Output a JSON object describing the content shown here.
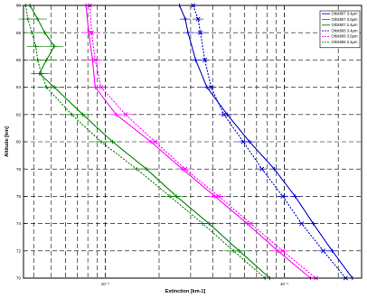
{
  "chart_data": {
    "type": "line",
    "title": "",
    "xlabel": "Extinction [km-1]",
    "ylabel": "Altitude [km]",
    "xscale": "log",
    "xlim": [
      3.5e-06,
      0.00027
    ],
    "ylim": [
      70,
      90
    ],
    "x_tick_values": [
      1e-05,
      0.0001
    ],
    "x_tick_labels": [
      "10⁻⁵",
      "10⁻⁴"
    ],
    "y_tick_values": [
      70,
      72,
      74,
      76,
      78,
      80,
      82,
      84,
      86,
      88,
      90
    ],
    "y_tick_labels": [
      "70",
      "72",
      "74",
      "76",
      "78",
      "80",
      "82",
      "84",
      "86",
      "88",
      "90"
    ],
    "grid": true,
    "legend_position": "top-right",
    "series": [
      {
        "name": "Orbit807 3.4µm",
        "color": "#0000cc",
        "dashed": false,
        "marker": "plus",
        "y": [
          90,
          89,
          88,
          86,
          84,
          82,
          80,
          78,
          76,
          74,
          72,
          70
        ],
        "x": [
          2.6e-05,
          2.8e-05,
          2.9e-05,
          3.2e-05,
          3.7e-05,
          4.8e-05,
          6.4e-05,
          8.8e-05,
          0.000115,
          0.000145,
          0.000185,
          0.00024
        ]
      },
      {
        "name": "Orbit807 3.0µm",
        "color": "#ff00ff",
        "dashed": false,
        "marker": "plus",
        "y": [
          90,
          88,
          86,
          84,
          82,
          80,
          78,
          76,
          74,
          72,
          70
        ],
        "x": [
          7.8e-06,
          8.1e-06,
          8.5e-06,
          8.8e-06,
          1.15e-05,
          1.8e-05,
          2.7e-05,
          4.1e-05,
          6.2e-05,
          9.2e-05,
          0.00014
        ]
      },
      {
        "name": "Orbit807 2.4µm",
        "color": "#008000",
        "dashed": false,
        "marker": "plus",
        "y": [
          90,
          89,
          88,
          87,
          86,
          85,
          84,
          82,
          80,
          78,
          76,
          74,
          72,
          70
        ],
        "x": [
          3.8e-06,
          4.2e-06,
          4.6e-06,
          5.2e-06,
          4.7e-06,
          4.3e-06,
          5.2e-06,
          7.5e-06,
          1.1e-05,
          1.7e-05,
          2.5e-05,
          3.8e-05,
          5.6e-05,
          8.3e-05
        ]
      },
      {
        "name": "Orbit808 3.4µm",
        "color": "#0000cc",
        "dashed": true,
        "marker": "x",
        "y": [
          90,
          89,
          88,
          86,
          84,
          82,
          80,
          78,
          76,
          74,
          72,
          70
        ],
        "x": [
          3.1e-05,
          3.3e-05,
          3.4e-05,
          3.6e-05,
          3.9e-05,
          4.6e-05,
          5.9e-05,
          7.5e-05,
          9.8e-05,
          0.000125,
          0.000165,
          0.00022
        ]
      },
      {
        "name": "Orbit808 3.0µm",
        "color": "#ff00ff",
        "dashed": true,
        "marker": "x",
        "y": [
          90,
          88,
          86,
          84,
          82,
          80,
          78,
          76,
          74,
          72,
          70
        ],
        "x": [
          8.2e-06,
          8.4e-06,
          8.8e-06,
          9.5e-06,
          1.3e-05,
          1.9e-05,
          2.8e-05,
          4.3e-05,
          6.5e-05,
          9.8e-05,
          0.00015
        ]
      },
      {
        "name": "Orbit808 2.4µm",
        "color": "#008000",
        "dashed": true,
        "marker": "plus",
        "y": [
          90,
          89,
          88,
          87,
          86,
          85,
          84,
          82,
          80,
          78,
          76,
          74,
          72,
          70
        ],
        "x": [
          3.6e-06,
          3.7e-06,
          3.9e-06,
          4.1e-06,
          4.2e-06,
          4.4e-06,
          4.7e-06,
          6.5e-06,
          9.5e-06,
          1.5e-05,
          2.3e-05,
          3.5e-05,
          5.2e-05,
          7.8e-05
        ]
      }
    ]
  }
}
